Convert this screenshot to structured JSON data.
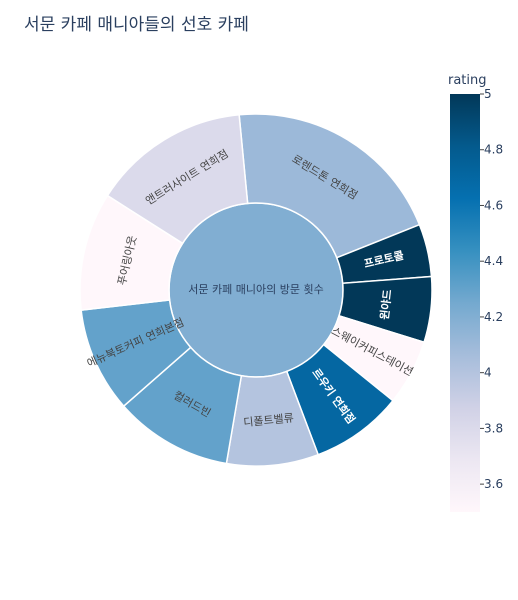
{
  "chart_data": {
    "type": "sunburst",
    "title": "서문 카페 매니아들의 선호 카페",
    "root": "서문 카페 매니아의 방문 횟수",
    "root_rating": 4.2,
    "colorbar": {
      "title": "rating",
      "min": 3.5,
      "max": 5,
      "ticks": [
        5,
        4.8,
        4.6,
        4.4,
        4.2,
        4,
        3.8,
        3.6
      ],
      "colors": [
        "#fff7fb",
        "#ece7f2",
        "#d0d1e6",
        "#a6bddb",
        "#74a9cf",
        "#3690c0",
        "#0570b0",
        "#045a8d",
        "#023858"
      ]
    },
    "items": [
      {
        "label": "로렌드톤 연희점",
        "value": 17,
        "rating": 4.1
      },
      {
        "label": "프로토콜",
        "value": 4,
        "rating": 5.0
      },
      {
        "label": "윈야드",
        "value": 5,
        "rating": 5.0
      },
      {
        "label": "스웨이커피스테이션",
        "value": 5,
        "rating": 3.5
      },
      {
        "label": "르우키 연희점",
        "value": 7,
        "rating": 4.7
      },
      {
        "label": "디폴트벨류",
        "value": 7,
        "rating": 4.0
      },
      {
        "label": "컬러드빈",
        "value": 9,
        "rating": 4.3
      },
      {
        "label": "에뉴북토커피 연희본점",
        "value": 8,
        "rating": 4.3
      },
      {
        "label": "푸어링아웃",
        "value": 9,
        "rating": 3.5
      },
      {
        "label": "앤트러사이트 연희점",
        "value": 12,
        "rating": 3.8
      }
    ]
  }
}
